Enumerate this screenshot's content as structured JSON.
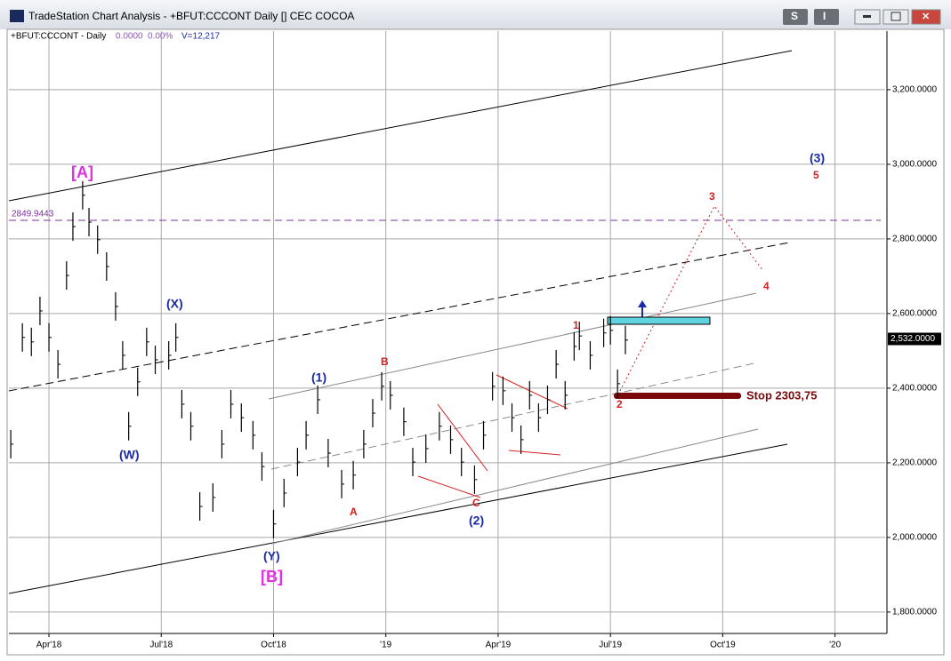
{
  "window": {
    "title": "TradeStation Chart Analysis - +BFUT:CCCONT Daily [] CEC COCOA",
    "buttons": [
      "S",
      "I"
    ]
  },
  "chart_data": {
    "type": "bar",
    "header": {
      "symbol": "+BFUT:CCCONT - Daily",
      "change": "0.0000",
      "change_pct": "0.00%",
      "volume": "V=12,217"
    },
    "x": [
      1.98,
      2.29,
      2.53,
      2.76,
      3.0,
      3.24,
      3.47,
      3.64,
      3.9,
      4.07,
      4.3,
      4.54,
      4.78,
      4.97,
      5.13,
      5.37,
      5.61,
      5.84,
      6.2,
      6.39,
      6.55,
      6.79,
      7.03,
      7.38,
      7.62,
      7.86,
      8.14,
      8.45,
      8.69,
      9.0,
      9.28,
      9.64,
      9.87,
      10.18,
      10.46,
      10.82,
      11.13,
      11.41,
      11.65,
      11.89,
      12.12,
      12.48,
      12.72,
      13.07,
      13.43,
      13.73,
      14.02,
      14.37,
      14.61,
      14.85,
      15.13,
      15.37,
      15.61,
      15.84,
      16.08,
      16.32,
      16.55,
      16.79,
      17.03,
      17.17,
      17.46,
      17.82,
      18.0,
      18.19,
      18.4
    ],
    "series": [
      {
        "color": "#000000",
        "values": [
          2250,
          2536,
          2524,
          2607,
          2536,
          2464,
          2702,
          2833,
          2917,
          2845,
          2798,
          2726,
          2619,
          2488,
          2298,
          2417,
          2524,
          2476,
          2488,
          2536,
          2357,
          2298,
          2083,
          2107,
          2250,
          2357,
          2321,
          2274,
          2190,
          2036,
          2119,
          2202,
          2274,
          2369,
          2226,
          2143,
          2167,
          2250,
          2333,
          2405,
          2381,
          2310,
          2202,
          2238,
          2298,
          2262,
          2202,
          2155,
          2274,
          2405,
          2393,
          2321,
          2262,
          2381,
          2321,
          2369,
          2464,
          2381,
          2512,
          2540,
          2488,
          2548,
          2555,
          2412,
          2529
        ]
      }
    ],
    "xlim": [
      1.93,
      25.34
    ],
    "xticks": [
      {
        "value": 3,
        "label": "Apr'18"
      },
      {
        "value": 6,
        "label": "Jul'18"
      },
      {
        "value": 9,
        "label": "Oct'18"
      },
      {
        "value": 12,
        "label": "'19"
      },
      {
        "value": 15,
        "label": "Apr'19"
      },
      {
        "value": 18,
        "label": "Jul'19"
      },
      {
        "value": 21,
        "label": "Oct'19"
      },
      {
        "value": 24,
        "label": "'20"
      }
    ],
    "ylim": [
      1745,
      3357
    ],
    "yticks": [
      {
        "value": 1800,
        "label": "1,800.0000"
      },
      {
        "value": 2000,
        "label": "2,000.0000"
      },
      {
        "value": 2200,
        "label": "2,200.0000"
      },
      {
        "value": 2400,
        "label": "2,400.0000"
      },
      {
        "value": 2600,
        "label": "2,600.0000"
      },
      {
        "value": 2800,
        "label": "2,800.0000"
      },
      {
        "value": 3000,
        "label": "3,000.0000"
      },
      {
        "value": 3200,
        "label": "3,200.0000"
      }
    ],
    "grid": true,
    "level_line": {
      "value": 2849.9443,
      "label": "2849.9443",
      "color": "#8030a0"
    },
    "last_price": {
      "value": 2532,
      "label": "2,532.0000"
    },
    "stop_label": "Stop 2303,75",
    "waves": [
      "[A]",
      "(X)",
      "(W)",
      "(Y)",
      "[B]",
      "(1)",
      "(2)",
      "(3)",
      "B",
      "A",
      "C",
      "1",
      "2",
      "3",
      "4",
      "5"
    ]
  }
}
